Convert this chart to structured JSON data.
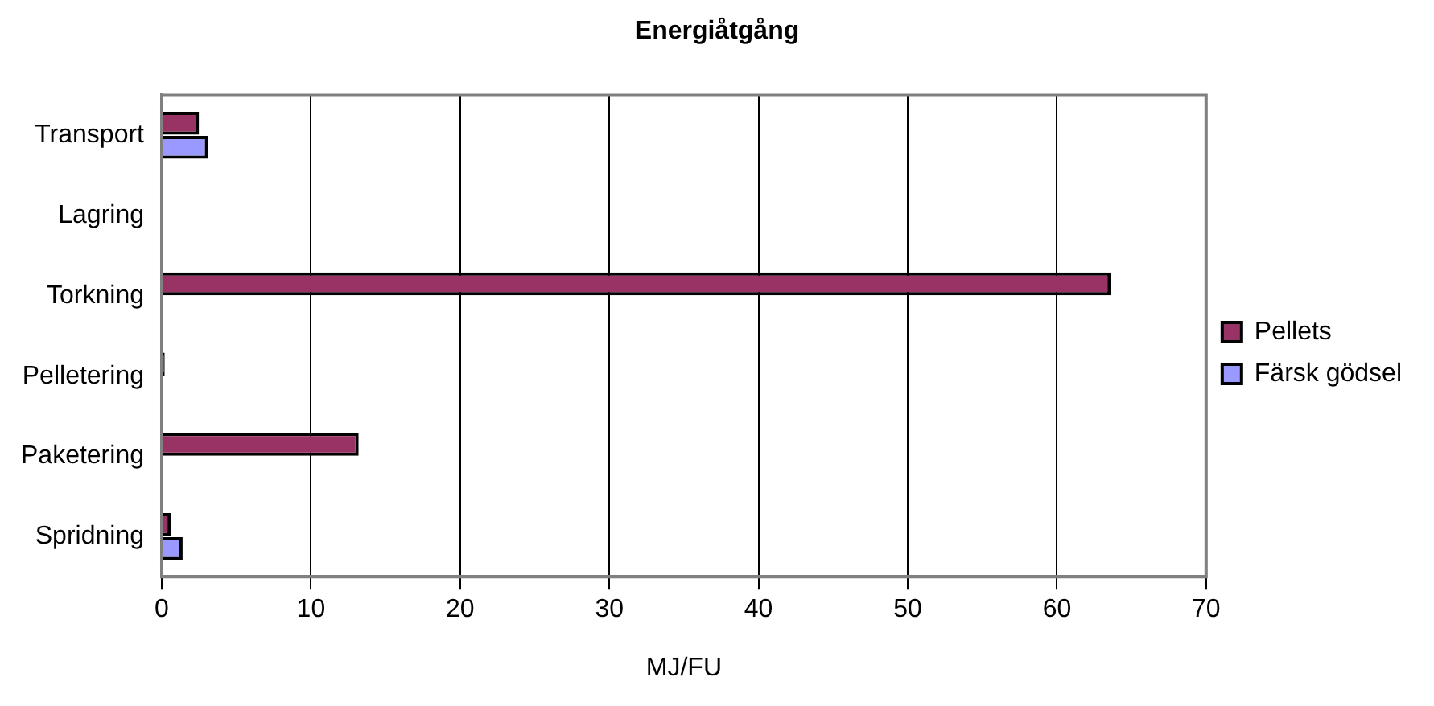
{
  "chart_data": {
    "type": "bar",
    "orientation": "horizontal",
    "title": "Energiåtgång",
    "xlabel": "MJ/FU",
    "categories": [
      "Transport",
      "Lagring",
      "Torkning",
      "Pelletering",
      "Paketering",
      "Spridning"
    ],
    "series": [
      {
        "name": "Pellets",
        "color": "#993366",
        "values": [
          2.5,
          null,
          63.6,
          0.2,
          13.2,
          0.6
        ]
      },
      {
        "name": "Färsk gödsel",
        "color": "#9999ff",
        "values": [
          3.1,
          null,
          null,
          null,
          null,
          1.4
        ]
      }
    ],
    "xlim": [
      0,
      70
    ],
    "xticks": [
      0,
      10,
      20,
      30,
      40,
      50,
      60,
      70
    ],
    "grid": "x",
    "legend": "right"
  }
}
